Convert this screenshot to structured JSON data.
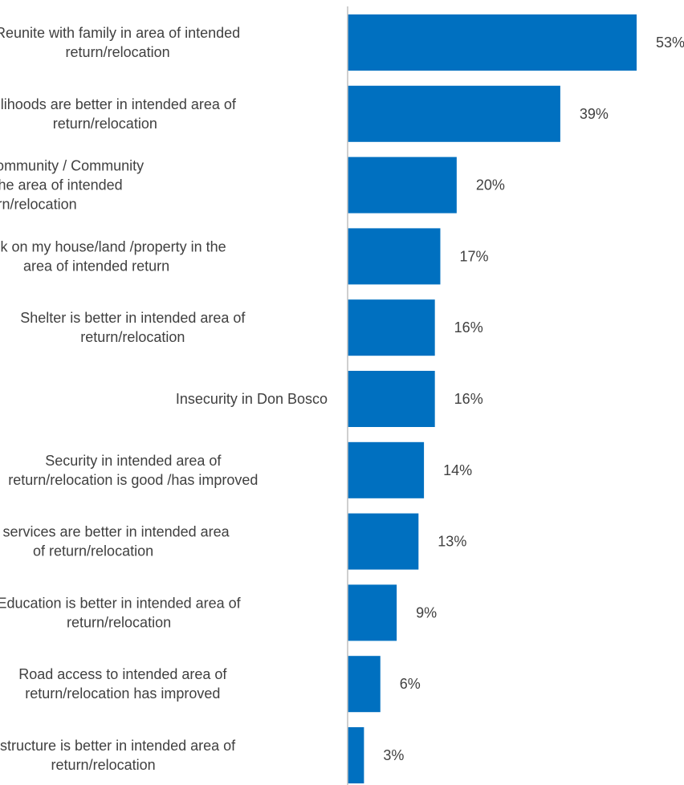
{
  "chart_data": {
    "type": "bar",
    "orientation": "horizontal",
    "bar_color": "#0070c0",
    "axis_color": "#bfbfbf",
    "value_suffix": "%",
    "xlim": [
      0,
      60
    ],
    "grid": false,
    "title": "",
    "xlabel": "",
    "ylabel": "",
    "categories": [
      [
        "Reunite with family in area of intended",
        "return/relocation"
      ],
      [
        "Livelihoods are better in intended area of",
        "return/relocation"
      ],
      [
        "Reunite with community / Community",
        "support in the area of intended",
        "return/relocation"
      ],
      [
        "Check on my house/land /property in the",
        "area of intended return"
      ],
      [
        "Shelter is better in intended area of",
        "return/relocation"
      ],
      [
        "Insecurity in Don Bosco"
      ],
      [
        "Security in  intended area of",
        "return/relocation is good /has improved"
      ],
      [
        "Health services are better in intended area",
        "of return/relocation"
      ],
      [
        "Education is better in intended area of",
        "return/relocation"
      ],
      [
        "Road access to intended area of",
        "return/relocation has improved"
      ],
      [
        "Infrastructure is better in intended area of",
        "return/relocation"
      ]
    ],
    "values": [
      53,
      39,
      20,
      17,
      16,
      16,
      14,
      13,
      9,
      6,
      3
    ],
    "data_labels": [
      "53%",
      "39%",
      "20%",
      "17%",
      "16%",
      "16%",
      "14%",
      "13%",
      "9%",
      "6%",
      "3%"
    ]
  }
}
